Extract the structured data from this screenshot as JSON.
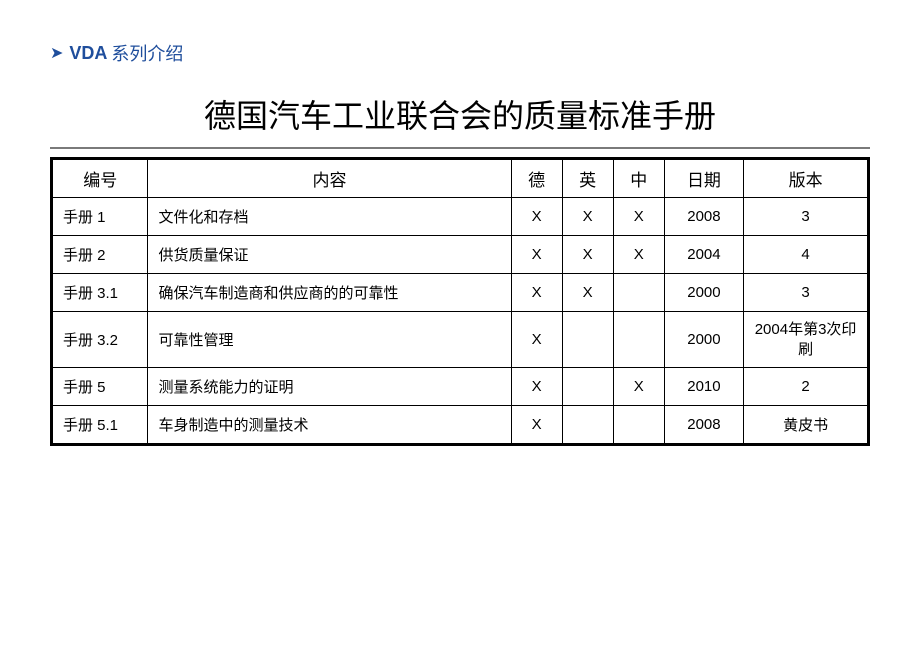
{
  "breadcrumb": {
    "prefix": "VDA",
    "text": "系列介绍"
  },
  "title": "德国汽车工业联合会的质量标准手册",
  "table": {
    "headers": {
      "id": "编号",
      "content": "内容",
      "german": "德",
      "english": "英",
      "chinese": "中",
      "date": "日期",
      "version": "版本"
    },
    "rows": [
      {
        "id": "手册 1",
        "content": "文件化和存档",
        "german": "X",
        "english": "X",
        "chinese": "X",
        "date": "2008",
        "version": "3"
      },
      {
        "id": "手册 2",
        "content": "供货质量保证",
        "german": "X",
        "english": "X",
        "chinese": "X",
        "date": "2004",
        "version": "4"
      },
      {
        "id": "手册 3.1",
        "content": "确保汽车制造商和供应商的的可靠性",
        "german": "X",
        "english": "X",
        "chinese": "",
        "date": "2000",
        "version": "3"
      },
      {
        "id": "手册 3.2",
        "content": "可靠性管理",
        "german": "X",
        "english": "",
        "chinese": "",
        "date": "2000",
        "version": "2004年第3次印刷"
      },
      {
        "id": "手册 5",
        "content": "测量系统能力的证明",
        "german": "X",
        "english": "",
        "chinese": "X",
        "date": "2010",
        "version": "2"
      },
      {
        "id": "手册 5.1",
        "content": "车身制造中的测量技术",
        "german": "X",
        "english": "",
        "chinese": "",
        "date": "2008",
        "version": "黄皮书"
      }
    ]
  }
}
